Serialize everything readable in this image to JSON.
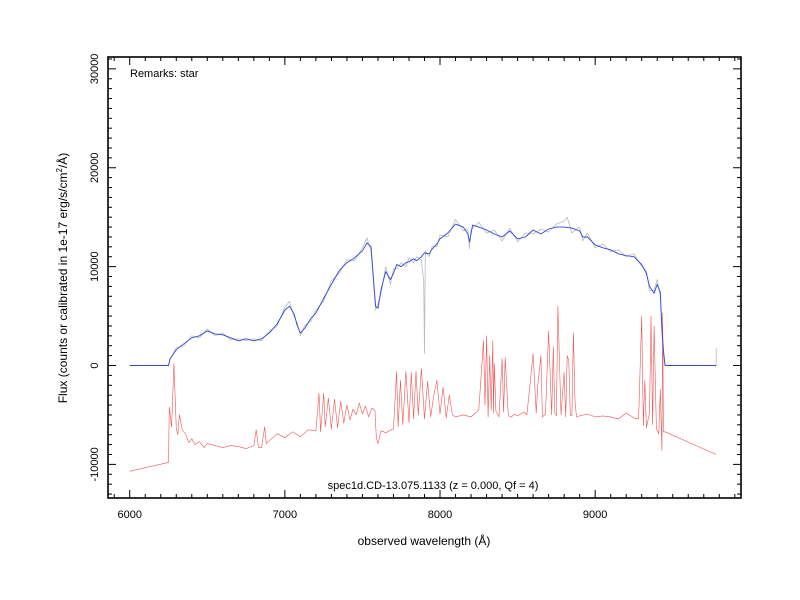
{
  "chart_data": {
    "type": "line",
    "annotation": "Remarks: star",
    "footer_label": "spec1d.CD-13.075.1133 (z = 0.000, Qf = 4)",
    "xlabel": "observed wavelength (Å)",
    "ylabel_main": "Flux (counts or calibrated in 1e-17 erg/s/cm",
    "ylabel_sup": "2",
    "ylabel_end": "/Å)",
    "xlim": [
      5860,
      9940
    ],
    "ylim": [
      -13400,
      31200
    ],
    "x_ticks": [
      6000,
      7000,
      8000,
      9000
    ],
    "x_tick_labels": [
      "6000",
      "7000",
      "8000",
      "9000"
    ],
    "y_ticks": [
      -10000,
      0,
      10000,
      20000,
      30000
    ],
    "y_tick_labels": [
      "-10000",
      "0",
      "10000",
      "20000",
      "30000"
    ],
    "grid": false,
    "colors": {
      "raw": "#bbbbbb",
      "smoothed": "#3344dd",
      "error": "#ee5555"
    },
    "series": [
      {
        "role": "smoothed",
        "x": [
          6000,
          6250,
          6260,
          6300,
          6350,
          6400,
          6450,
          6500,
          6550,
          6600,
          6650,
          6700,
          6750,
          6800,
          6850,
          6900,
          6950,
          7000,
          7030,
          7060,
          7080,
          7100,
          7130,
          7170,
          7200,
          7250,
          7300,
          7350,
          7400,
          7450,
          7500,
          7530,
          7555,
          7570,
          7585,
          7600,
          7620,
          7650,
          7680,
          7700,
          7720,
          7750,
          7780,
          7800,
          7830,
          7850,
          7880,
          7900,
          7930,
          7950,
          7980,
          8000,
          8050,
          8100,
          8150,
          8180,
          8190,
          8200,
          8210,
          8250,
          8300,
          8350,
          8400,
          8450,
          8500,
          8550,
          8600,
          8650,
          8700,
          8750,
          8800,
          8850,
          8900,
          8920,
          8950,
          9000,
          9050,
          9100,
          9150,
          9200,
          9250,
          9300,
          9330,
          9350,
          9380,
          9400,
          9420,
          9430,
          9440,
          9450,
          9780
        ],
        "y": [
          0,
          0,
          700,
          1600,
          2200,
          2800,
          3000,
          3500,
          3200,
          3100,
          2800,
          2500,
          2700,
          2500,
          2700,
          3300,
          4200,
          5600,
          6000,
          5200,
          4000,
          3300,
          3800,
          4800,
          5300,
          6800,
          8200,
          9600,
          10400,
          10900,
          11600,
          12400,
          12000,
          9000,
          6000,
          5800,
          7700,
          9500,
          8700,
          9300,
          10200,
          10000,
          10400,
          10500,
          10800,
          10600,
          11000,
          11400,
          11300,
          11800,
          12300,
          12800,
          13400,
          14300,
          14000,
          13300,
          12500,
          13300,
          14200,
          14000,
          13700,
          13300,
          13000,
          13600,
          12800,
          13000,
          13700,
          13300,
          13800,
          14000,
          14000,
          13900,
          13600,
          13000,
          13000,
          12200,
          11900,
          11700,
          11300,
          11100,
          11000,
          10200,
          9300,
          8000,
          7300,
          8200,
          7400,
          3800,
          1500,
          0,
          0
        ]
      },
      {
        "role": "raw",
        "x": [
          6000,
          6250,
          6260,
          6300,
          6350,
          6400,
          6450,
          6500,
          6550,
          6600,
          6650,
          6700,
          6750,
          6800,
          6850,
          6900,
          6950,
          7000,
          7030,
          7060,
          7080,
          7100,
          7130,
          7170,
          7200,
          7250,
          7300,
          7350,
          7400,
          7450,
          7500,
          7530,
          7555,
          7570,
          7585,
          7600,
          7620,
          7650,
          7680,
          7700,
          7720,
          7750,
          7780,
          7800,
          7830,
          7850,
          7880,
          7895,
          7900,
          7905,
          7930,
          7950,
          7980,
          8000,
          8050,
          8100,
          8150,
          8180,
          8190,
          8200,
          8210,
          8250,
          8300,
          8350,
          8400,
          8450,
          8500,
          8550,
          8600,
          8650,
          8700,
          8750,
          8800,
          8820,
          8850,
          8900,
          8920,
          8950,
          9000,
          9050,
          9100,
          9150,
          9200,
          9250,
          9300,
          9330,
          9350,
          9380,
          9400,
          9420,
          9430,
          9440,
          9450,
          9780,
          9780
        ],
        "y": [
          0,
          0,
          600,
          1800,
          2000,
          3000,
          2800,
          3700,
          3000,
          3300,
          2600,
          2700,
          2500,
          2700,
          2500,
          3500,
          4000,
          5900,
          6500,
          4900,
          4300,
          3000,
          4100,
          4500,
          5600,
          6500,
          8600,
          9300,
          10700,
          10600,
          11900,
          12900,
          11600,
          8600,
          5600,
          6300,
          7300,
          10000,
          8200,
          9800,
          9800,
          10400,
          10000,
          10900,
          10400,
          11000,
          10700,
          8500,
          1200,
          11600,
          11000,
          12100,
          12000,
          13200,
          13000,
          14800,
          13600,
          13800,
          11800,
          13700,
          13900,
          14500,
          13400,
          13700,
          12600,
          13900,
          12500,
          13400,
          13300,
          13800,
          13500,
          14300,
          14600,
          15000,
          13400,
          14000,
          12600,
          13400,
          11900,
          12300,
          11500,
          11700,
          11000,
          11300,
          10000,
          9600,
          7600,
          7600,
          8700,
          7000,
          3200,
          1800,
          0,
          0,
          1800
        ]
      },
      {
        "role": "error",
        "x": [
          6000,
          6250,
          6255,
          6270,
          6285,
          6300,
          6310,
          6320,
          6340,
          6360,
          6380,
          6400,
          6420,
          6450,
          6480,
          6500,
          6550,
          6600,
          6650,
          6700,
          6750,
          6800,
          6815,
          6830,
          6850,
          6870,
          6880,
          6900,
          6950,
          7000,
          7050,
          7100,
          7150,
          7200,
          7220,
          7230,
          7250,
          7260,
          7280,
          7300,
          7320,
          7340,
          7360,
          7380,
          7400,
          7420,
          7440,
          7460,
          7480,
          7500,
          7520,
          7540,
          7560,
          7580,
          7590,
          7600,
          7620,
          7650,
          7700,
          7720,
          7730,
          7745,
          7760,
          7780,
          7800,
          7815,
          7830,
          7845,
          7860,
          7880,
          7900,
          7920,
          7940,
          7960,
          7980,
          8000,
          8020,
          8040,
          8060,
          8080,
          8100,
          8150,
          8200,
          8250,
          8280,
          8290,
          8300,
          8310,
          8320,
          8330,
          8340,
          8345,
          8350,
          8360,
          8380,
          8400,
          8410,
          8420,
          8440,
          8460,
          8480,
          8500,
          8520,
          8540,
          8560,
          8600,
          8620,
          8630,
          8650,
          8660,
          8680,
          8700,
          8720,
          8730,
          8740,
          8750,
          8760,
          8780,
          8800,
          8810,
          8820,
          8830,
          8840,
          8850,
          8860,
          8870,
          8880,
          8900,
          8950,
          9000,
          9050,
          9100,
          9150,
          9200,
          9250,
          9280,
          9300,
          9310,
          9320,
          9330,
          9350,
          9360,
          9370,
          9380,
          9395,
          9410,
          9420,
          9430,
          9435,
          9440,
          9450,
          9780
        ],
        "y": [
          -10700,
          -9800,
          -4200,
          -6200,
          200,
          -6400,
          -7000,
          -5000,
          -6600,
          -6900,
          -7800,
          -7400,
          -8000,
          -7700,
          -8300,
          -7900,
          -8100,
          -8300,
          -8100,
          -8200,
          -8400,
          -8100,
          -6500,
          -8300,
          -8300,
          -6200,
          -7900,
          -7600,
          -6900,
          -7300,
          -6700,
          -7200,
          -6500,
          -6600,
          -2800,
          -6700,
          -2800,
          -6200,
          -3300,
          -6400,
          -3400,
          -6300,
          -3600,
          -5800,
          -4000,
          -5500,
          -4400,
          -5000,
          -3800,
          -4900,
          -4100,
          -5200,
          -4300,
          -4500,
          -7400,
          -7900,
          -6600,
          -6800,
          -6400,
          -600,
          -6200,
          -1500,
          -6000,
          -600,
          -5800,
          -700,
          -5400,
          -600,
          -5000,
          -300,
          -5400,
          -1600,
          -5200,
          -3000,
          -1500,
          -4900,
          -2200,
          -5300,
          -3000,
          -5000,
          -5200,
          -5000,
          -5200,
          -4500,
          2500,
          -4000,
          3000,
          -5200,
          1000,
          -4500,
          2500,
          -4800,
          200,
          -4600,
          -5200,
          700,
          -4700,
          800,
          -5100,
          -5200,
          -4900,
          -5100,
          -4900,
          -4700,
          -5000,
          1200,
          -4800,
          -2000,
          1000,
          -5200,
          -4900,
          3500,
          -5000,
          1900,
          -4800,
          -5100,
          6000,
          -5000,
          -700,
          -5200,
          1000,
          500,
          -5000,
          -5100,
          3300,
          -3600,
          -5200,
          -5100,
          -4900,
          -5200,
          -5100,
          -5200,
          -5400,
          -4800,
          -5300,
          -5400,
          5000,
          -6100,
          -1500,
          -6300,
          -4800,
          5000,
          -6000,
          4000,
          -6400,
          -6900,
          -2400,
          -8600,
          5300,
          -6700,
          -6700,
          -9000
        ]
      }
    ]
  }
}
